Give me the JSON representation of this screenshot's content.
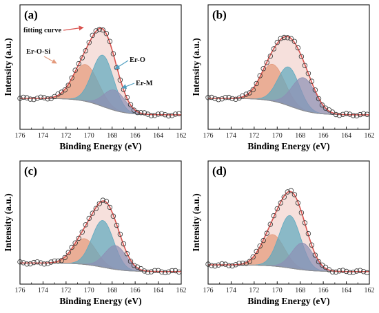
{
  "colors": {
    "envelope_fill": "#f6e0dc",
    "peak_er_o_si": "#e49a7c",
    "peak_er_o": "#5fa9bf",
    "peak_er_m": "#8d90b6",
    "background_line": "#8c8c8c",
    "fit_line": "#d9534f",
    "markers": "#333333",
    "arrow_red": "#d9534f",
    "arrow_orange": "#e49a7c",
    "arrow_blue": "#4f9ec0"
  },
  "chart_data": [
    {
      "type": "line",
      "panel_label": "(a)",
      "xlabel": "Binding Energy (eV)",
      "ylabel": "Intensity (a.u.)",
      "xlim": [
        176,
        162
      ],
      "x_reversed": true,
      "xticks": [
        "176",
        "174",
        "172",
        "170",
        "168",
        "166",
        "164",
        "162"
      ],
      "annotations": [
        "fitting curve",
        "Er-O-Si",
        "Er-O",
        "Er-M"
      ],
      "series": [
        {
          "name": "Er-O-Si",
          "center_eV": 170.3,
          "height": 0.38,
          "fwhm_eV": 2.6
        },
        {
          "name": "Er-O",
          "center_eV": 168.8,
          "height": 0.53,
          "fwhm_eV": 2.2
        },
        {
          "name": "Er-M",
          "center_eV": 167.8,
          "height": 0.21,
          "fwhm_eV": 2.2
        }
      ],
      "background": {
        "left": 0.22,
        "right": 0.05
      }
    },
    {
      "type": "line",
      "panel_label": "(b)",
      "xlabel": "Binding Energy (eV)",
      "ylabel": "Intensity (a.u.)",
      "xlim": [
        176,
        162
      ],
      "x_reversed": true,
      "xticks": [
        "176",
        "174",
        "172",
        "170",
        "168",
        "166",
        "164",
        "162"
      ],
      "series": [
        {
          "name": "Er-O-Si",
          "center_eV": 170.4,
          "height": 0.38,
          "fwhm_eV": 2.5
        },
        {
          "name": "Er-O",
          "center_eV": 169.0,
          "height": 0.4,
          "fwhm_eV": 2.2
        },
        {
          "name": "Er-M",
          "center_eV": 167.7,
          "height": 0.34,
          "fwhm_eV": 2.4
        }
      ],
      "background": {
        "left": 0.22,
        "right": 0.05
      }
    },
    {
      "type": "line",
      "panel_label": "(c)",
      "xlabel": "Binding Energy (eV)",
      "ylabel": "Intensity (a.u.)",
      "xlim": [
        176,
        162
      ],
      "x_reversed": true,
      "xticks": [
        "176",
        "174",
        "172",
        "170",
        "168",
        "166",
        "164",
        "162"
      ],
      "series": [
        {
          "name": "Er-O-Si",
          "center_eV": 170.4,
          "height": 0.27,
          "fwhm_eV": 2.4
        },
        {
          "name": "Er-O",
          "center_eV": 168.8,
          "height": 0.49,
          "fwhm_eV": 2.2
        },
        {
          "name": "Er-M",
          "center_eV": 167.7,
          "height": 0.25,
          "fwhm_eV": 2.2
        }
      ],
      "background": {
        "left": 0.12,
        "right": 0.03
      }
    },
    {
      "type": "line",
      "panel_label": "(d)",
      "xlabel": "Binding Energy (eV)",
      "ylabel": "Intensity (a.u.)",
      "xlim": [
        176,
        162
      ],
      "x_reversed": true,
      "xticks": [
        "176",
        "174",
        "172",
        "170",
        "168",
        "166",
        "164",
        "162"
      ],
      "series": [
        {
          "name": "Er-O-Si",
          "center_eV": 170.4,
          "height": 0.33,
          "fwhm_eV": 2.4
        },
        {
          "name": "Er-O",
          "center_eV": 168.9,
          "height": 0.55,
          "fwhm_eV": 2.2
        },
        {
          "name": "Er-M",
          "center_eV": 167.8,
          "height": 0.28,
          "fwhm_eV": 2.2
        }
      ],
      "background": {
        "left": 0.1,
        "right": 0.03
      }
    }
  ]
}
